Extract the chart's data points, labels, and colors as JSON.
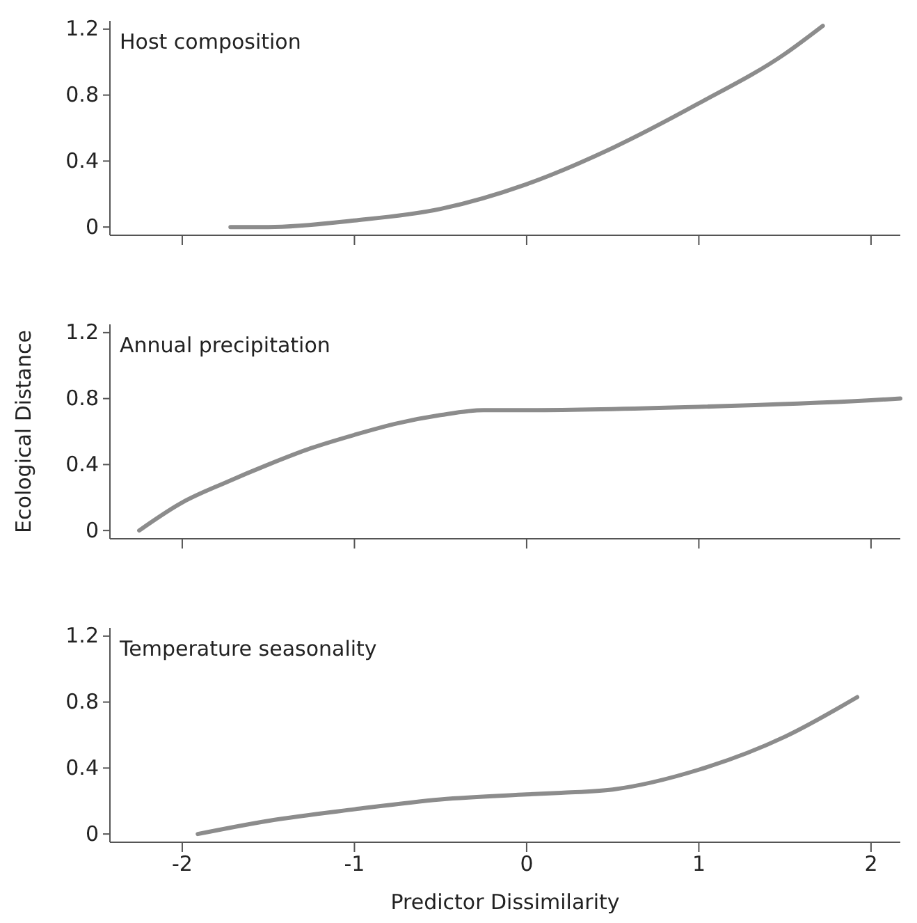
{
  "chart_data": [
    {
      "type": "line",
      "title": "Host composition",
      "x": [
        -1.72,
        -1.5,
        -1,
        -0.5,
        0,
        0.5,
        1,
        1.5,
        1.72
      ],
      "series": [
        {
          "color": "#8c8c8c",
          "values": [
            0,
            0,
            0.04,
            0.11,
            0.26,
            0.48,
            0.75,
            1.05,
            1.22
          ]
        }
      ],
      "xlim": [
        -2.42,
        2.17
      ],
      "xticks": [
        -2,
        -1,
        0,
        1,
        2
      ],
      "ylim": [
        -0.05,
        1.25
      ],
      "yticks": [
        0,
        0.4,
        0.8,
        1.2
      ],
      "tick_labels": "y"
    },
    {
      "type": "line",
      "title": "Annual precipitation",
      "ylabel": "Ecological Distance",
      "x": [
        -2.25,
        -2,
        -1.75,
        -1.5,
        -1.25,
        -1,
        -0.75,
        -0.5,
        -0.25,
        0,
        1,
        2,
        2.17
      ],
      "series": [
        {
          "color": "#8c8c8c",
          "values": [
            0,
            0.17,
            0.29,
            0.4,
            0.5,
            0.58,
            0.65,
            0.7,
            0.73,
            0.73,
            0.75,
            0.79,
            0.8
          ]
        }
      ],
      "xlim": [
        -2.42,
        2.17
      ],
      "xticks": [
        -2,
        -1,
        0,
        1,
        2
      ],
      "ylim": [
        -0.05,
        1.25
      ],
      "yticks": [
        0,
        0.4,
        0.8,
        1.2
      ],
      "tick_labels": "y"
    },
    {
      "type": "line",
      "title": "Temperature seasonality",
      "xlabel": "Predictor Dissimilarity",
      "x": [
        -1.91,
        -1.5,
        -1,
        -0.5,
        0,
        0.2,
        0.5,
        1,
        1.5,
        1.92
      ],
      "series": [
        {
          "color": "#8c8c8c",
          "values": [
            0,
            0.08,
            0.15,
            0.21,
            0.24,
            0.25,
            0.27,
            0.39,
            0.59,
            0.83
          ]
        }
      ],
      "xlim": [
        -2.42,
        2.17
      ],
      "xticks": [
        -2,
        -1,
        0,
        1,
        2
      ],
      "ylim": [
        -0.05,
        1.25
      ],
      "yticks": [
        0,
        0.4,
        0.8,
        1.2
      ]
    }
  ]
}
